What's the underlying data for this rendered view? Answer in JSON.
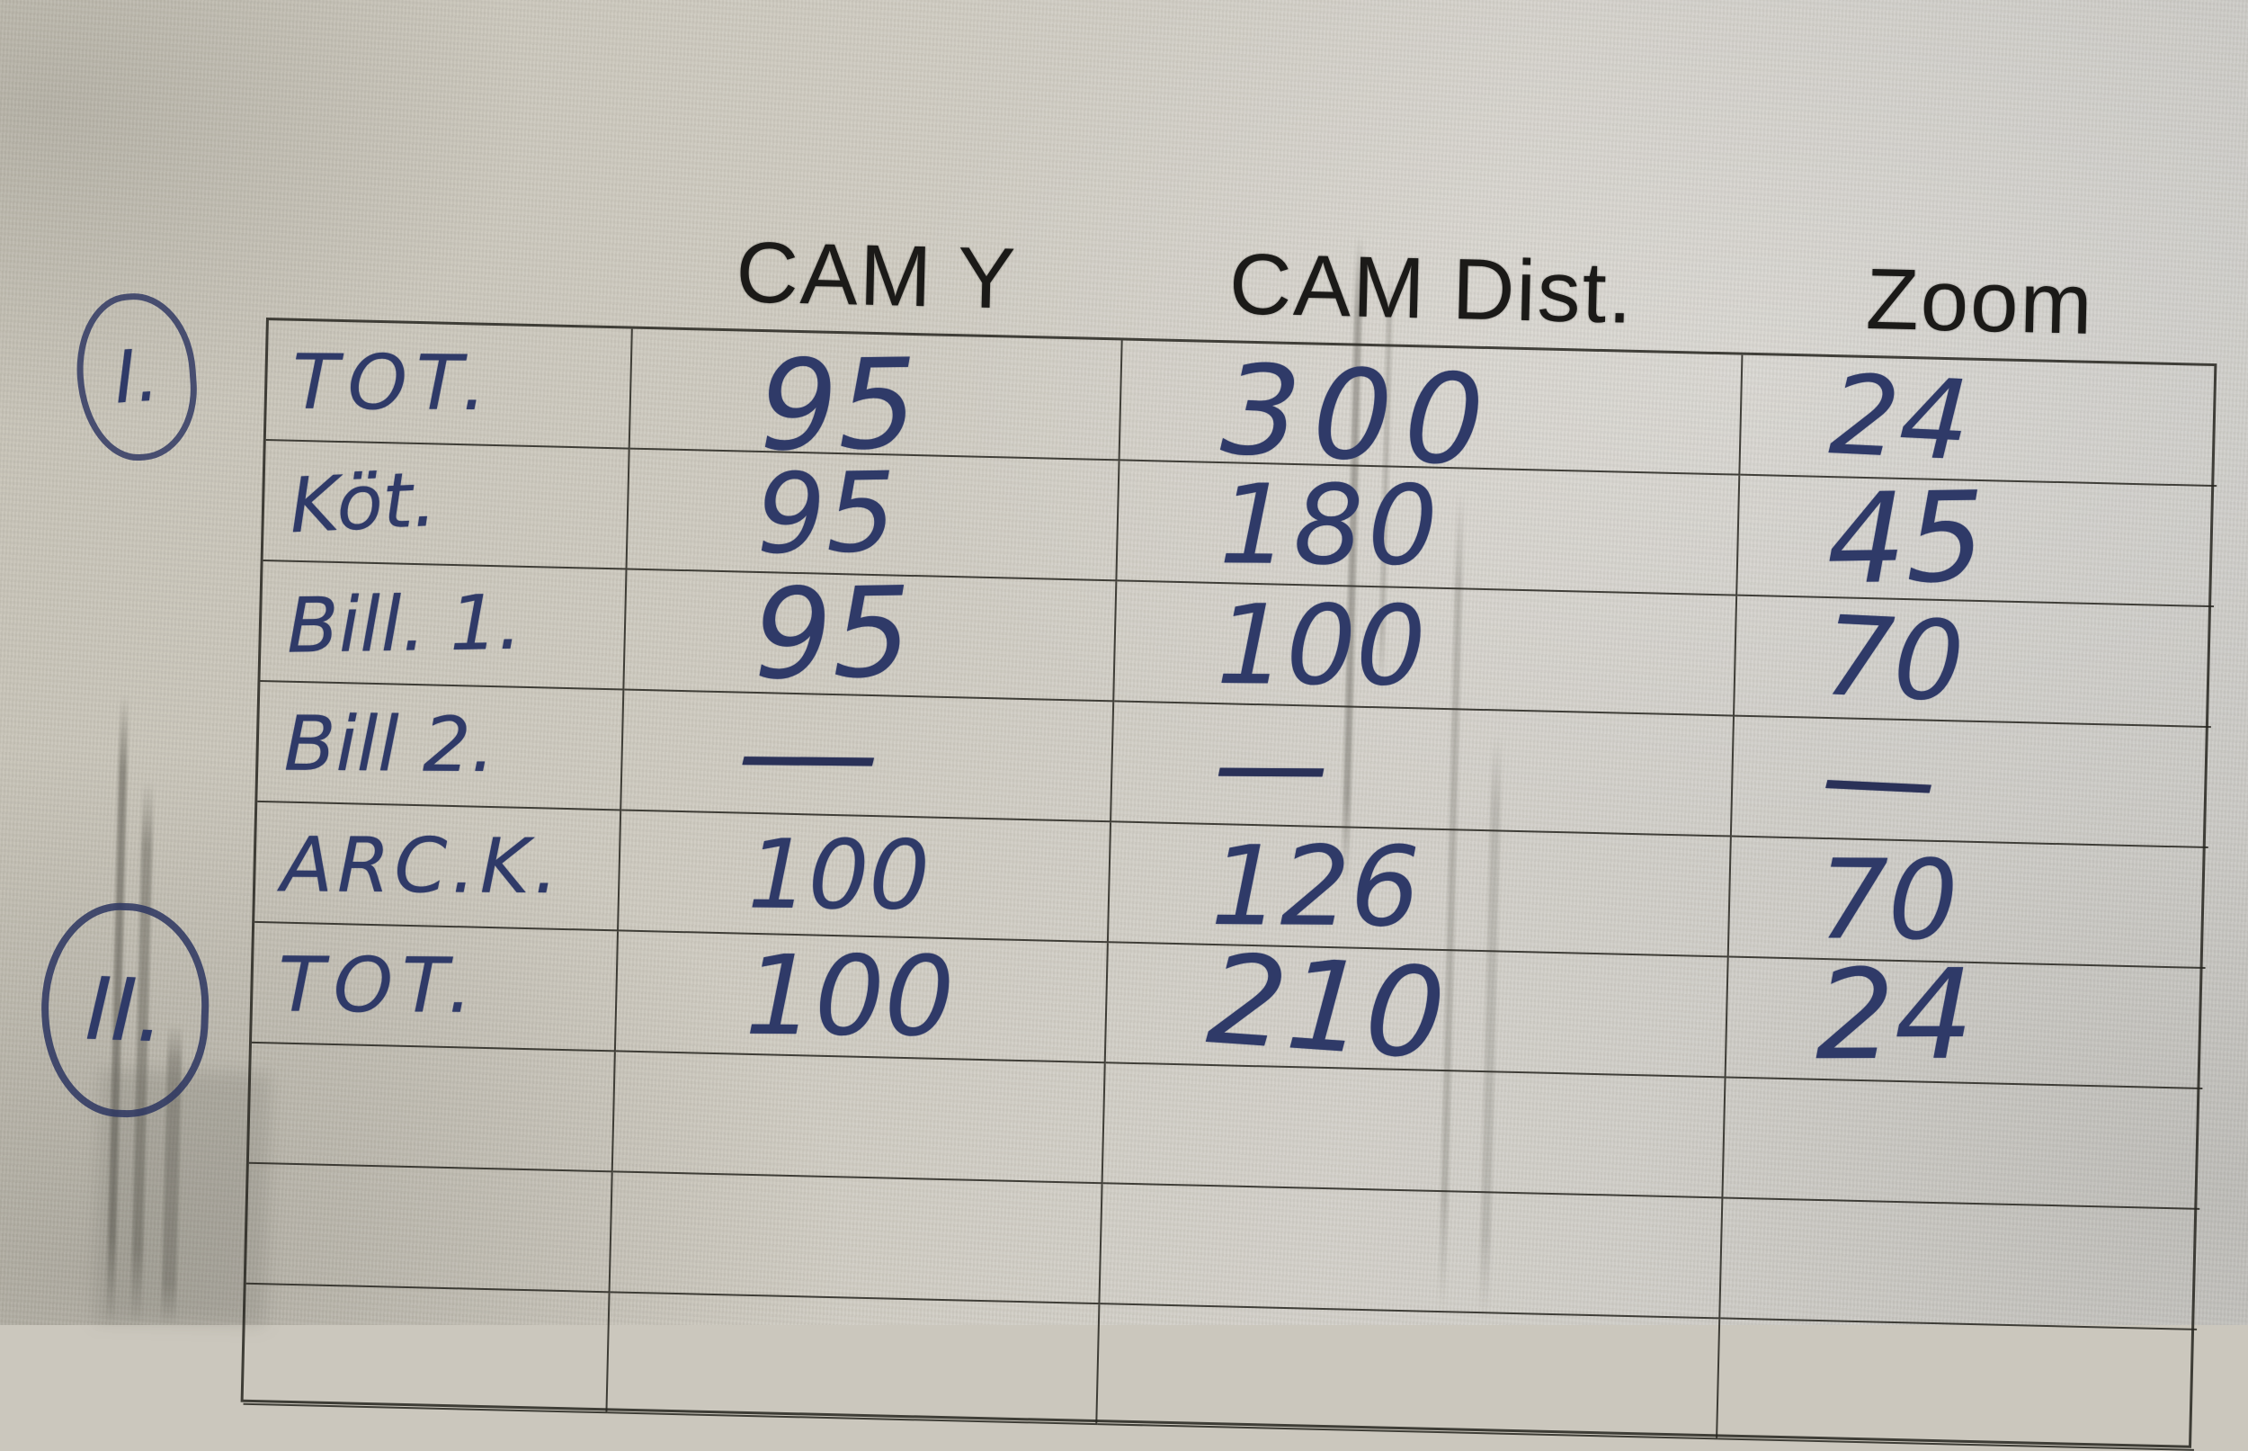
{
  "table": {
    "columns": [
      "CAM Y",
      "CAM Dist.",
      "Zoom"
    ],
    "rows": [
      {
        "label": "TOT.",
        "values": [
          "95",
          "300",
          "24"
        ]
      },
      {
        "label": "Köt.",
        "values": [
          "95",
          "180",
          "45"
        ]
      },
      {
        "label": "Bill. 1.",
        "values": [
          "95",
          "100",
          "70"
        ]
      },
      {
        "label": "Bill 2.",
        "values": [
          "—",
          "—",
          "—"
        ]
      },
      {
        "label": "ARC.K.",
        "values": [
          "100",
          "126",
          "70"
        ]
      },
      {
        "label": "TOT.",
        "values": [
          "100",
          "210",
          "24"
        ]
      },
      {
        "label": "",
        "values": [
          "",
          "",
          ""
        ]
      },
      {
        "label": "",
        "values": [
          "",
          "",
          ""
        ]
      },
      {
        "label": "",
        "values": [
          "",
          "",
          ""
        ]
      }
    ]
  },
  "margin": {
    "markers": [
      {
        "text": "I."
      },
      {
        "text": "II."
      }
    ]
  },
  "colors": {
    "ink": "#2f3a68",
    "print_text": "#1b1a18",
    "grid_line": "#26241e",
    "paper": "#cdc9bf",
    "pencil": "#55534c"
  }
}
